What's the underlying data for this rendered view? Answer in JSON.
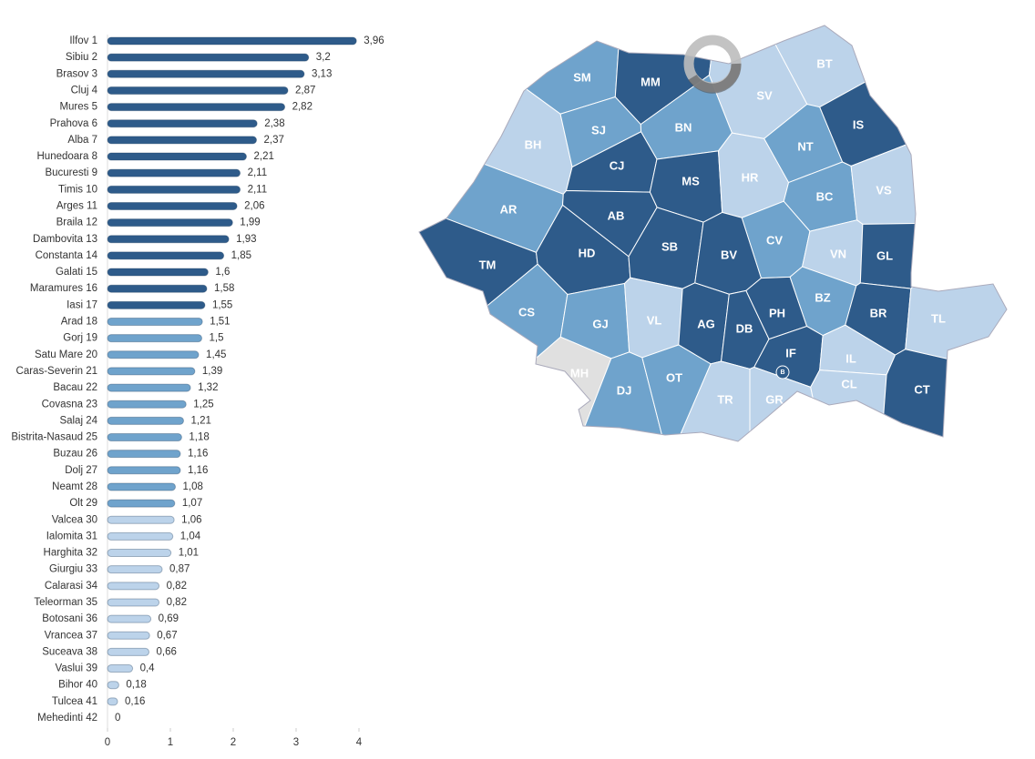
{
  "chart_data": {
    "type": "bar",
    "orientation": "horizontal",
    "categories": [
      "Ilfov 1",
      "Sibiu 2",
      "Brasov 3",
      "Cluj 4",
      "Mures 5",
      "Prahova 6",
      "Alba 7",
      "Hunedoara 8",
      "Bucuresti 9",
      "Timis 10",
      "Arges 11",
      "Braila 12",
      "Dambovita 13",
      "Constanta 14",
      "Galati 15",
      "Maramures 16",
      "Iasi 17",
      "Arad 18",
      "Gorj 19",
      "Satu Mare 20",
      "Caras-Severin 21",
      "Bacau 22",
      "Covasna 23",
      "Salaj 24",
      "Bistrita-Nasaud 25",
      "Buzau 26",
      "Dolj 27",
      "Neamt 28",
      "Olt 29",
      "Valcea 30",
      "Ialomita 31",
      "Harghita 32",
      "Giurgiu 33",
      "Calarasi 34",
      "Teleorman 35",
      "Botosani 36",
      "Vrancea 37",
      "Suceava 38",
      "Vaslui 39",
      "Bihor 40",
      "Tulcea 41",
      "Mehedinti 42"
    ],
    "values": [
      3.96,
      3.2,
      3.13,
      2.87,
      2.82,
      2.38,
      2.37,
      2.21,
      2.11,
      2.11,
      2.06,
      1.99,
      1.93,
      1.85,
      1.6,
      1.58,
      1.55,
      1.51,
      1.5,
      1.45,
      1.39,
      1.32,
      1.25,
      1.21,
      1.18,
      1.16,
      1.16,
      1.08,
      1.07,
      1.06,
      1.04,
      1.01,
      0.87,
      0.82,
      0.82,
      0.69,
      0.67,
      0.66,
      0.4,
      0.18,
      0.16,
      0
    ],
    "value_labels": [
      "3,96",
      "3,2",
      "3,13",
      "2,87",
      "2,82",
      "2,38",
      "2,37",
      "2,21",
      "2,11",
      "2,11",
      "2,06",
      "1,99",
      "1,93",
      "1,85",
      "1,6",
      "1,58",
      "1,55",
      "1,51",
      "1,5",
      "1,45",
      "1,39",
      "1,32",
      "1,25",
      "1,21",
      "1,18",
      "1,16",
      "1,16",
      "1,08",
      "1,07",
      "1,06",
      "1,04",
      "1,01",
      "0,87",
      "0,82",
      "0,82",
      "0,69",
      "0,67",
      "0,66",
      "0,4",
      "0,18",
      "0,16",
      "0"
    ],
    "colors": [
      "#2e5b8a",
      "#2e5b8a",
      "#2e5b8a",
      "#2e5b8a",
      "#2e5b8a",
      "#2e5b8a",
      "#2e5b8a",
      "#2e5b8a",
      "#2e5b8a",
      "#2e5b8a",
      "#2e5b8a",
      "#2e5b8a",
      "#2e5b8a",
      "#2e5b8a",
      "#2e5b8a",
      "#2e5b8a",
      "#2e5b8a",
      "#6fa3cc",
      "#6fa3cc",
      "#6fa3cc",
      "#6fa3cc",
      "#6fa3cc",
      "#6fa3cc",
      "#6fa3cc",
      "#6fa3cc",
      "#6fa3cc",
      "#6fa3cc",
      "#6fa3cc",
      "#6fa3cc",
      "#bcd3ea",
      "#bcd3ea",
      "#bcd3ea",
      "#bcd3ea",
      "#bcd3ea",
      "#bcd3ea",
      "#bcd3ea",
      "#bcd3ea",
      "#bcd3ea",
      "#bcd3ea",
      "#bcd3ea",
      "#bcd3ea",
      "#bcd3ea"
    ],
    "xlim": [
      0,
      4
    ],
    "xticks": [
      0,
      1,
      2,
      3,
      4
    ]
  },
  "map": {
    "regions": [
      {
        "label": "SM",
        "color": "#6fa3cc"
      },
      {
        "label": "MM",
        "color": "#2e5b8a"
      },
      {
        "label": "BT",
        "color": "#bcd3ea"
      },
      {
        "label": "SV",
        "color": "#bcd3ea"
      },
      {
        "label": "BH",
        "color": "#bcd3ea"
      },
      {
        "label": "SJ",
        "color": "#6fa3cc"
      },
      {
        "label": "BN",
        "color": "#6fa3cc"
      },
      {
        "label": "IS",
        "color": "#2e5b8a"
      },
      {
        "label": "NT",
        "color": "#6fa3cc"
      },
      {
        "label": "CJ",
        "color": "#2e5b8a"
      },
      {
        "label": "MS",
        "color": "#2e5b8a"
      },
      {
        "label": "HR",
        "color": "#bcd3ea"
      },
      {
        "label": "BC",
        "color": "#6fa3cc"
      },
      {
        "label": "VS",
        "color": "#bcd3ea"
      },
      {
        "label": "AR",
        "color": "#6fa3cc"
      },
      {
        "label": "AB",
        "color": "#2e5b8a"
      },
      {
        "label": "CV",
        "color": "#6fa3cc"
      },
      {
        "label": "VN",
        "color": "#bcd3ea"
      },
      {
        "label": "GL",
        "color": "#2e5b8a"
      },
      {
        "label": "TM",
        "color": "#2e5b8a"
      },
      {
        "label": "HD",
        "color": "#2e5b8a"
      },
      {
        "label": "SB",
        "color": "#2e5b8a"
      },
      {
        "label": "BV",
        "color": "#2e5b8a"
      },
      {
        "label": "BZ",
        "color": "#6fa3cc"
      },
      {
        "label": "BR",
        "color": "#2e5b8a"
      },
      {
        "label": "TL",
        "color": "#bcd3ea"
      },
      {
        "label": "CS",
        "color": "#6fa3cc"
      },
      {
        "label": "GJ",
        "color": "#6fa3cc"
      },
      {
        "label": "VL",
        "color": "#bcd3ea"
      },
      {
        "label": "AG",
        "color": "#2e5b8a"
      },
      {
        "label": "DB",
        "color": "#2e5b8a"
      },
      {
        "label": "PH",
        "color": "#2e5b8a"
      },
      {
        "label": "MH",
        "color": "#e0e0e0"
      },
      {
        "label": "IF",
        "color": "#2e5b8a"
      },
      {
        "label": "IL",
        "color": "#bcd3ea"
      },
      {
        "label": "DJ",
        "color": "#6fa3cc"
      },
      {
        "label": "OT",
        "color": "#6fa3cc"
      },
      {
        "label": "TR",
        "color": "#bcd3ea"
      },
      {
        "label": "GR",
        "color": "#bcd3ea"
      },
      {
        "label": "CL",
        "color": "#bcd3ea"
      },
      {
        "label": "CT",
        "color": "#2e5b8a"
      },
      {
        "label": "B",
        "color": "#2e5b8a"
      }
    ]
  }
}
